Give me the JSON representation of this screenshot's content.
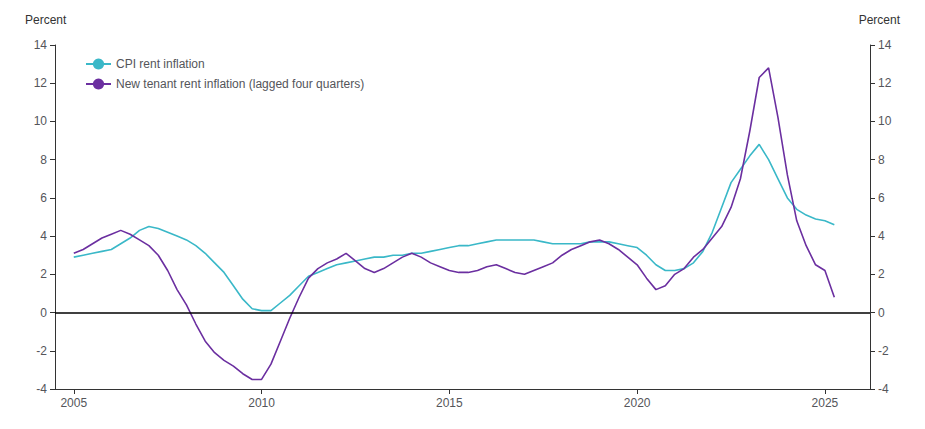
{
  "chart_data": {
    "type": "line",
    "x": [
      2005.0,
      2005.25,
      2005.5,
      2005.75,
      2006.0,
      2006.25,
      2006.5,
      2006.75,
      2007.0,
      2007.25,
      2007.5,
      2007.75,
      2008.0,
      2008.25,
      2008.5,
      2008.75,
      2009.0,
      2009.25,
      2009.5,
      2009.75,
      2010.0,
      2010.25,
      2010.5,
      2010.75,
      2011.0,
      2011.25,
      2011.5,
      2011.75,
      2012.0,
      2012.25,
      2012.5,
      2012.75,
      2013.0,
      2013.25,
      2013.5,
      2013.75,
      2014.0,
      2014.25,
      2014.5,
      2014.75,
      2015.0,
      2015.25,
      2015.5,
      2015.75,
      2016.0,
      2016.25,
      2016.5,
      2016.75,
      2017.0,
      2017.25,
      2017.5,
      2017.75,
      2018.0,
      2018.25,
      2018.5,
      2018.75,
      2019.0,
      2019.25,
      2019.5,
      2019.75,
      2020.0,
      2020.25,
      2020.5,
      2020.75,
      2021.0,
      2021.25,
      2021.5,
      2021.75,
      2022.0,
      2022.25,
      2022.5,
      2022.75,
      2023.0,
      2023.25,
      2023.5,
      2023.75,
      2024.0,
      2024.25,
      2024.5,
      2024.75,
      2025.0,
      2025.25
    ],
    "series": [
      {
        "name": "CPI rent inflation",
        "color": "#3ab8c8",
        "values": [
          2.9,
          3.0,
          3.1,
          3.2,
          3.3,
          3.6,
          3.9,
          4.3,
          4.5,
          4.4,
          4.2,
          4.0,
          3.8,
          3.5,
          3.1,
          2.6,
          2.1,
          1.4,
          0.7,
          0.2,
          0.1,
          0.1,
          0.5,
          0.9,
          1.4,
          1.9,
          2.1,
          2.3,
          2.5,
          2.6,
          2.7,
          2.8,
          2.9,
          2.9,
          3.0,
          3.0,
          3.1,
          3.1,
          3.2,
          3.3,
          3.4,
          3.5,
          3.5,
          3.6,
          3.7,
          3.8,
          3.8,
          3.8,
          3.8,
          3.8,
          3.7,
          3.6,
          3.6,
          3.6,
          3.6,
          3.7,
          3.7,
          3.7,
          3.6,
          3.5,
          3.4,
          3.0,
          2.5,
          2.2,
          2.2,
          2.3,
          2.6,
          3.2,
          4.2,
          5.5,
          6.8,
          7.5,
          8.2,
          8.8,
          8.0,
          7.0,
          6.0,
          5.4,
          5.1,
          4.9,
          4.8,
          4.6
        ]
      },
      {
        "name": "New tenant rent inflation (lagged four quarters)",
        "color": "#6b2fa0",
        "values": [
          3.1,
          3.3,
          3.6,
          3.9,
          4.1,
          4.3,
          4.1,
          3.8,
          3.5,
          3.0,
          2.2,
          1.2,
          0.4,
          -0.6,
          -1.5,
          -2.1,
          -2.5,
          -2.8,
          -3.2,
          -3.5,
          -3.5,
          -2.7,
          -1.5,
          -0.3,
          0.8,
          1.8,
          2.3,
          2.6,
          2.8,
          3.1,
          2.7,
          2.3,
          2.1,
          2.3,
          2.6,
          2.9,
          3.1,
          2.9,
          2.6,
          2.4,
          2.2,
          2.1,
          2.1,
          2.2,
          2.4,
          2.5,
          2.3,
          2.1,
          2.0,
          2.2,
          2.4,
          2.6,
          3.0,
          3.3,
          3.5,
          3.7,
          3.8,
          3.6,
          3.3,
          2.9,
          2.5,
          1.8,
          1.2,
          1.4,
          2.0,
          2.3,
          2.9,
          3.3,
          3.9,
          4.5,
          5.5,
          7.0,
          9.5,
          12.3,
          12.8,
          10.2,
          7.2,
          4.8,
          3.5,
          2.5,
          2.2,
          0.8
        ]
      }
    ],
    "xlim": [
      2004.5,
      2026.2
    ],
    "xticks": [
      2005,
      2010,
      2015,
      2020,
      2025
    ],
    "ylim": [
      -4,
      14
    ],
    "yticks": [
      -4,
      -2,
      0,
      2,
      4,
      6,
      8,
      10,
      12,
      14
    ],
    "y2lim": [
      -4,
      14
    ],
    "y2ticks": [
      -4,
      -2,
      0,
      2,
      4,
      6,
      8,
      10,
      12,
      14
    ],
    "ylabel": "Percent",
    "y2label": "Percent",
    "reference_lines": [
      {
        "y": 0,
        "color": "black"
      }
    ],
    "grid": false,
    "legend": "upper left"
  }
}
